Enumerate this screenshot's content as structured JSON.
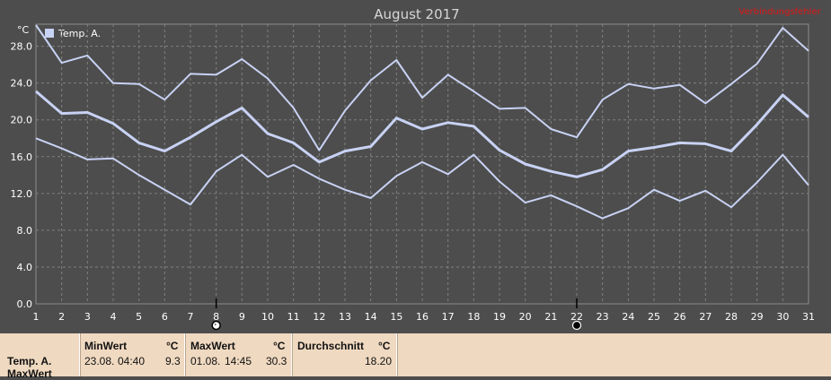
{
  "chart_data": {
    "type": "line",
    "title": "August 2017",
    "error_label": "Verbindungsfehler",
    "ylabel": "°C",
    "ylim": [
      0,
      30.4
    ],
    "yticks": [
      0.0,
      4.0,
      8.0,
      12.0,
      16.0,
      20.0,
      24.0,
      28.0
    ],
    "ytick_labels": [
      "0.0",
      "4.0",
      "8.0",
      "12.0",
      "16.0",
      "20.0",
      "24.0",
      "28.0"
    ],
    "x": [
      1,
      2,
      3,
      4,
      5,
      6,
      7,
      8,
      9,
      10,
      11,
      12,
      13,
      14,
      15,
      16,
      17,
      18,
      19,
      20,
      21,
      22,
      23,
      24,
      25,
      26,
      27,
      28,
      29,
      30,
      31
    ],
    "xtick_labels": [
      "1",
      "2",
      "3",
      "4",
      "5",
      "6",
      "7",
      "8",
      "9",
      "10",
      "11",
      "12",
      "13",
      "14",
      "15",
      "16",
      "17",
      "18",
      "19",
      "20",
      "21",
      "22",
      "23",
      "24",
      "25",
      "26",
      "27",
      "28",
      "29",
      "30",
      "31"
    ],
    "grid": true,
    "legend": [
      "Temp. A."
    ],
    "legend_position": "top-left",
    "line_color": "#c8d2f4",
    "markers": [
      {
        "x": 8,
        "type": "full-moon"
      },
      {
        "x": 22,
        "type": "new-moon"
      }
    ],
    "series": [
      {
        "role": "max",
        "values": [
          30.3,
          26.2,
          27.0,
          24.0,
          23.9,
          22.2,
          25.0,
          24.9,
          26.6,
          24.5,
          21.3,
          16.7,
          21.0,
          24.3,
          26.5,
          22.4,
          24.9,
          23.1,
          21.2,
          21.3,
          19.0,
          18.1,
          22.2,
          23.9,
          23.4,
          23.8,
          21.8,
          23.9,
          26.1,
          30.0,
          27.5
        ]
      },
      {
        "role": "avg",
        "values": [
          23.1,
          20.7,
          20.8,
          19.6,
          17.5,
          16.6,
          18.1,
          19.8,
          21.3,
          18.5,
          17.5,
          15.4,
          16.6,
          17.1,
          20.2,
          19.0,
          19.7,
          19.3,
          16.7,
          15.2,
          14.4,
          13.8,
          14.6,
          16.6,
          17.0,
          17.5,
          17.4,
          16.6,
          19.5,
          22.7,
          20.3
        ]
      },
      {
        "role": "min",
        "values": [
          18.0,
          16.9,
          15.7,
          15.8,
          14.0,
          12.4,
          10.8,
          14.4,
          16.2,
          13.8,
          15.1,
          13.6,
          12.4,
          11.5,
          13.9,
          15.4,
          14.1,
          16.2,
          13.3,
          11.0,
          11.8,
          10.6,
          9.3,
          10.4,
          12.4,
          11.2,
          12.3,
          10.5,
          13.2,
          16.2,
          12.9
        ]
      }
    ]
  },
  "stats": {
    "row_label": "Temp. A.",
    "row_label_2": "MaxWert",
    "min": {
      "label": "MinWert",
      "unit": "°C",
      "date": "23.08.",
      "time": "04:40",
      "value": "9.3"
    },
    "max": {
      "label": "MaxWert",
      "unit": "°C",
      "date": "01.08.",
      "time": "14:45",
      "value": "30.3"
    },
    "avg": {
      "label": "Durchschnitt",
      "unit": "°C",
      "value": "18.20"
    }
  }
}
